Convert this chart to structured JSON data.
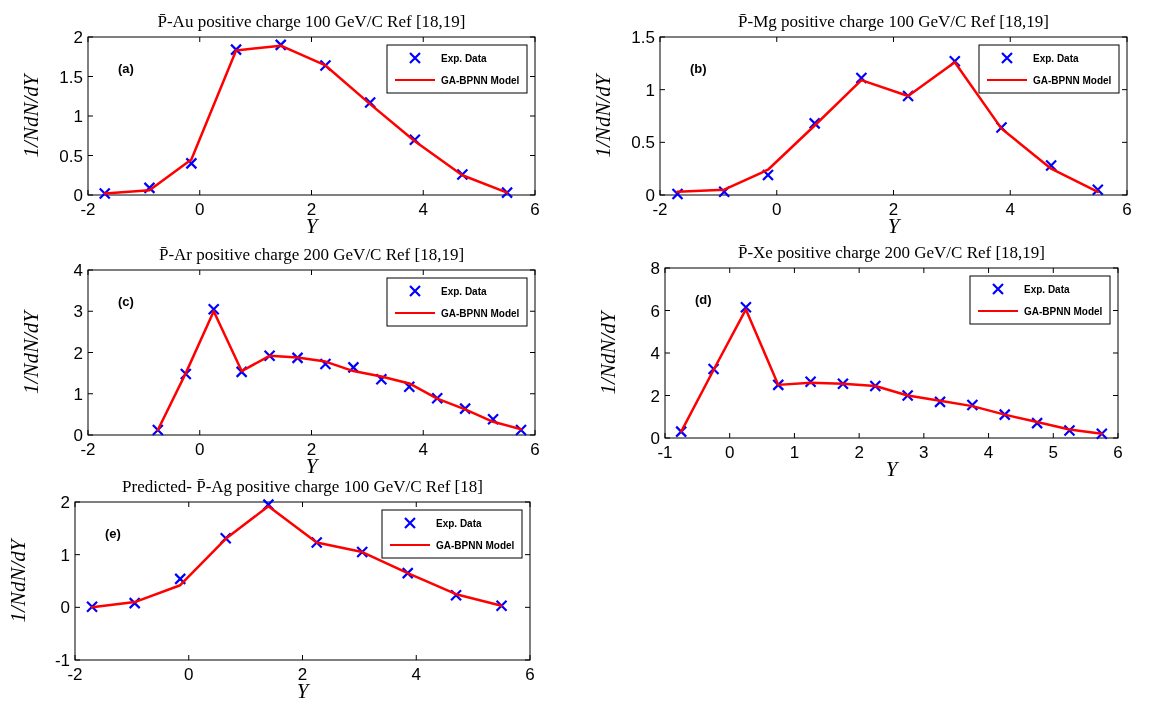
{
  "chart_data": [
    {
      "type": "line",
      "title": "P̄-Au positive charge 100 GeV/C Ref [18,19]",
      "xlabel": "Y",
      "ylabel": "1/NdN/dY",
      "annotations": [
        "(a)"
      ],
      "xlim": [
        -2,
        6
      ],
      "xticks": [
        -2,
        0,
        2,
        4,
        6
      ],
      "ylim": [
        0,
        2
      ],
      "yticks": [
        0,
        0.5,
        1,
        1.5,
        2
      ],
      "grid": false,
      "legend": "top right",
      "x": [
        -1.7,
        -0.9,
        -0.15,
        0.65,
        1.45,
        2.25,
        3.05,
        3.85,
        4.7,
        5.5
      ],
      "series": [
        {
          "name": "Exp. Data",
          "type": "scatter",
          "color": "#0000ff",
          "marker": "cross",
          "values": [
            0.02,
            0.09,
            0.4,
            1.84,
            1.9,
            1.64,
            1.17,
            0.7,
            0.26,
            0.03
          ]
        },
        {
          "name": "GA-BPNN Model",
          "type": "line",
          "color": "#ff0000",
          "marker": "none",
          "line_style": "solid",
          "values": [
            0.02,
            0.06,
            0.45,
            1.83,
            1.89,
            1.64,
            1.15,
            0.68,
            0.25,
            0.03
          ]
        }
      ]
    },
    {
      "type": "line",
      "title": "P̄-Mg positive charge 100 GeV/C Ref [18,19]",
      "xlabel": "Y",
      "ylabel": "1/NdN/dY",
      "annotations": [
        "(b)"
      ],
      "xlim": [
        -2,
        6
      ],
      "xticks": [
        -2,
        0,
        2,
        4,
        6
      ],
      "ylim": [
        0,
        1.5
      ],
      "yticks": [
        0,
        0.5,
        1,
        1.5
      ],
      "grid": false,
      "legend": "top right",
      "x": [
        -1.7,
        -0.9,
        -0.15,
        0.65,
        1.45,
        2.25,
        3.05,
        3.85,
        4.7,
        5.5
      ],
      "series": [
        {
          "name": "Exp. Data",
          "type": "scatter",
          "color": "#0000ff",
          "marker": "cross",
          "values": [
            0.01,
            0.03,
            0.19,
            0.68,
            1.11,
            0.94,
            1.27,
            0.64,
            0.28,
            0.05
          ]
        },
        {
          "name": "GA-BPNN Model",
          "type": "line",
          "color": "#ff0000",
          "marker": "none",
          "line_style": "solid",
          "values": [
            0.03,
            0.05,
            0.24,
            0.66,
            1.09,
            0.94,
            1.26,
            0.63,
            0.25,
            0.03
          ]
        }
      ]
    },
    {
      "type": "line",
      "title": "P̄-Ar positive charge 200 GeV/C Ref [18,19]",
      "xlabel": "Y",
      "ylabel": "1/NdN/dY",
      "annotations": [
        "(c)"
      ],
      "xlim": [
        -2,
        6
      ],
      "xticks": [
        -2,
        0,
        2,
        4,
        6
      ],
      "ylim": [
        0,
        4
      ],
      "yticks": [
        0,
        1,
        2,
        3,
        4
      ],
      "grid": false,
      "legend": "top right",
      "x": [
        -0.75,
        -0.25,
        0.25,
        0.75,
        1.25,
        1.75,
        2.25,
        2.75,
        3.25,
        3.75,
        4.25,
        4.75,
        5.25,
        5.75
      ],
      "series": [
        {
          "name": "Exp. Data",
          "type": "scatter",
          "color": "#0000ff",
          "marker": "cross",
          "values": [
            0.12,
            1.48,
            3.05,
            1.53,
            1.92,
            1.87,
            1.72,
            1.64,
            1.35,
            1.17,
            0.89,
            0.64,
            0.38,
            0.12
          ]
        },
        {
          "name": "GA-BPNN Model",
          "type": "line",
          "color": "#ff0000",
          "marker": "none",
          "line_style": "solid",
          "values": [
            0.12,
            1.5,
            3.0,
            1.55,
            1.92,
            1.88,
            1.78,
            1.55,
            1.42,
            1.25,
            0.88,
            0.62,
            0.32,
            0.14
          ]
        }
      ]
    },
    {
      "type": "line",
      "title": "P̄-Xe positive charge 200 GeV/C Ref [18,19]",
      "xlabel": "Y",
      "ylabel": "1/NdN/dY",
      "annotations": [
        "(d)"
      ],
      "xlim": [
        -1,
        6
      ],
      "xticks": [
        -1,
        0,
        1,
        2,
        3,
        4,
        5,
        6
      ],
      "ylim": [
        0,
        8
      ],
      "yticks": [
        0,
        2,
        4,
        6,
        8
      ],
      "grid": false,
      "legend": "top right",
      "x": [
        -0.75,
        -0.25,
        0.25,
        0.75,
        1.25,
        1.75,
        2.25,
        2.75,
        3.25,
        3.75,
        4.25,
        4.75,
        5.25,
        5.75
      ],
      "series": [
        {
          "name": "Exp. Data",
          "type": "scatter",
          "color": "#0000ff",
          "marker": "cross",
          "values": [
            0.3,
            3.25,
            6.15,
            2.5,
            2.65,
            2.55,
            2.45,
            2.0,
            1.7,
            1.55,
            1.1,
            0.7,
            0.35,
            0.2
          ]
        },
        {
          "name": "GA-BPNN Model",
          "type": "line",
          "color": "#ff0000",
          "marker": "none",
          "line_style": "solid",
          "values": [
            0.3,
            3.2,
            6.05,
            2.5,
            2.6,
            2.55,
            2.45,
            2.0,
            1.75,
            1.5,
            1.1,
            0.75,
            0.4,
            0.2
          ]
        }
      ]
    },
    {
      "type": "line",
      "title": "Predicted- P̄-Ag positive charge 100 GeV/C Ref [18]",
      "xlabel": "Y",
      "ylabel": "1/NdN/dY",
      "annotations": [
        "(e)"
      ],
      "xlim": [
        -2,
        6
      ],
      "xticks": [
        -2,
        0,
        2,
        4,
        6
      ],
      "ylim": [
        -1,
        2
      ],
      "yticks": [
        -1,
        0,
        1,
        2
      ],
      "grid": false,
      "legend": "top right",
      "x": [
        -1.7,
        -0.95,
        -0.15,
        0.65,
        1.4,
        2.25,
        3.05,
        3.85,
        4.7,
        5.5
      ],
      "series": [
        {
          "name": "Exp. Data",
          "type": "scatter",
          "color": "#0000ff",
          "marker": "cross",
          "values": [
            0.01,
            0.08,
            0.54,
            1.31,
            1.95,
            1.23,
            1.05,
            0.65,
            0.23,
            0.03
          ]
        },
        {
          "name": "GA-BPNN Model",
          "type": "line",
          "color": "#ff0000",
          "marker": "none",
          "line_style": "solid",
          "values": [
            0.0,
            0.1,
            0.42,
            1.3,
            1.92,
            1.23,
            1.05,
            0.65,
            0.25,
            0.03
          ]
        }
      ]
    }
  ]
}
